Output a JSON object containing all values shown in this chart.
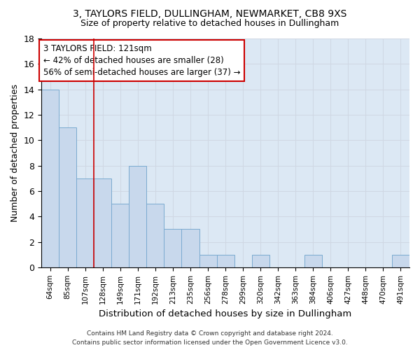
{
  "title1": "3, TAYLORS FIELD, DULLINGHAM, NEWMARKET, CB8 9XS",
  "title2": "Size of property relative to detached houses in Dullingham",
  "xlabel": "Distribution of detached houses by size in Dullingham",
  "ylabel": "Number of detached properties",
  "categories": [
    "64sqm",
    "85sqm",
    "107sqm",
    "128sqm",
    "149sqm",
    "171sqm",
    "192sqm",
    "213sqm",
    "235sqm",
    "256sqm",
    "278sqm",
    "299sqm",
    "320sqm",
    "342sqm",
    "363sqm",
    "384sqm",
    "406sqm",
    "427sqm",
    "448sqm",
    "470sqm",
    "491sqm"
  ],
  "values": [
    14,
    11,
    7,
    7,
    5,
    8,
    5,
    3,
    3,
    1,
    1,
    0,
    1,
    0,
    0,
    1,
    0,
    0,
    0,
    0,
    1
  ],
  "bar_color": "#c8d8ec",
  "bar_edge_color": "#7aaad0",
  "grid_color": "#d0d8e4",
  "bg_color": "#dce8f4",
  "vline_color": "#cc0000",
  "vline_pos": 2.5,
  "annotation_line1": "3 TAYLORS FIELD: 121sqm",
  "annotation_line2": "← 42% of detached houses are smaller (28)",
  "annotation_line3": "56% of semi-detached houses are larger (37) →",
  "annotation_box_color": "#cc0000",
  "footer1": "Contains HM Land Registry data © Crown copyright and database right 2024.",
  "footer2": "Contains public sector information licensed under the Open Government Licence v3.0.",
  "ylim": [
    0,
    18
  ],
  "yticks": [
    0,
    2,
    4,
    6,
    8,
    10,
    12,
    14,
    16,
    18
  ]
}
